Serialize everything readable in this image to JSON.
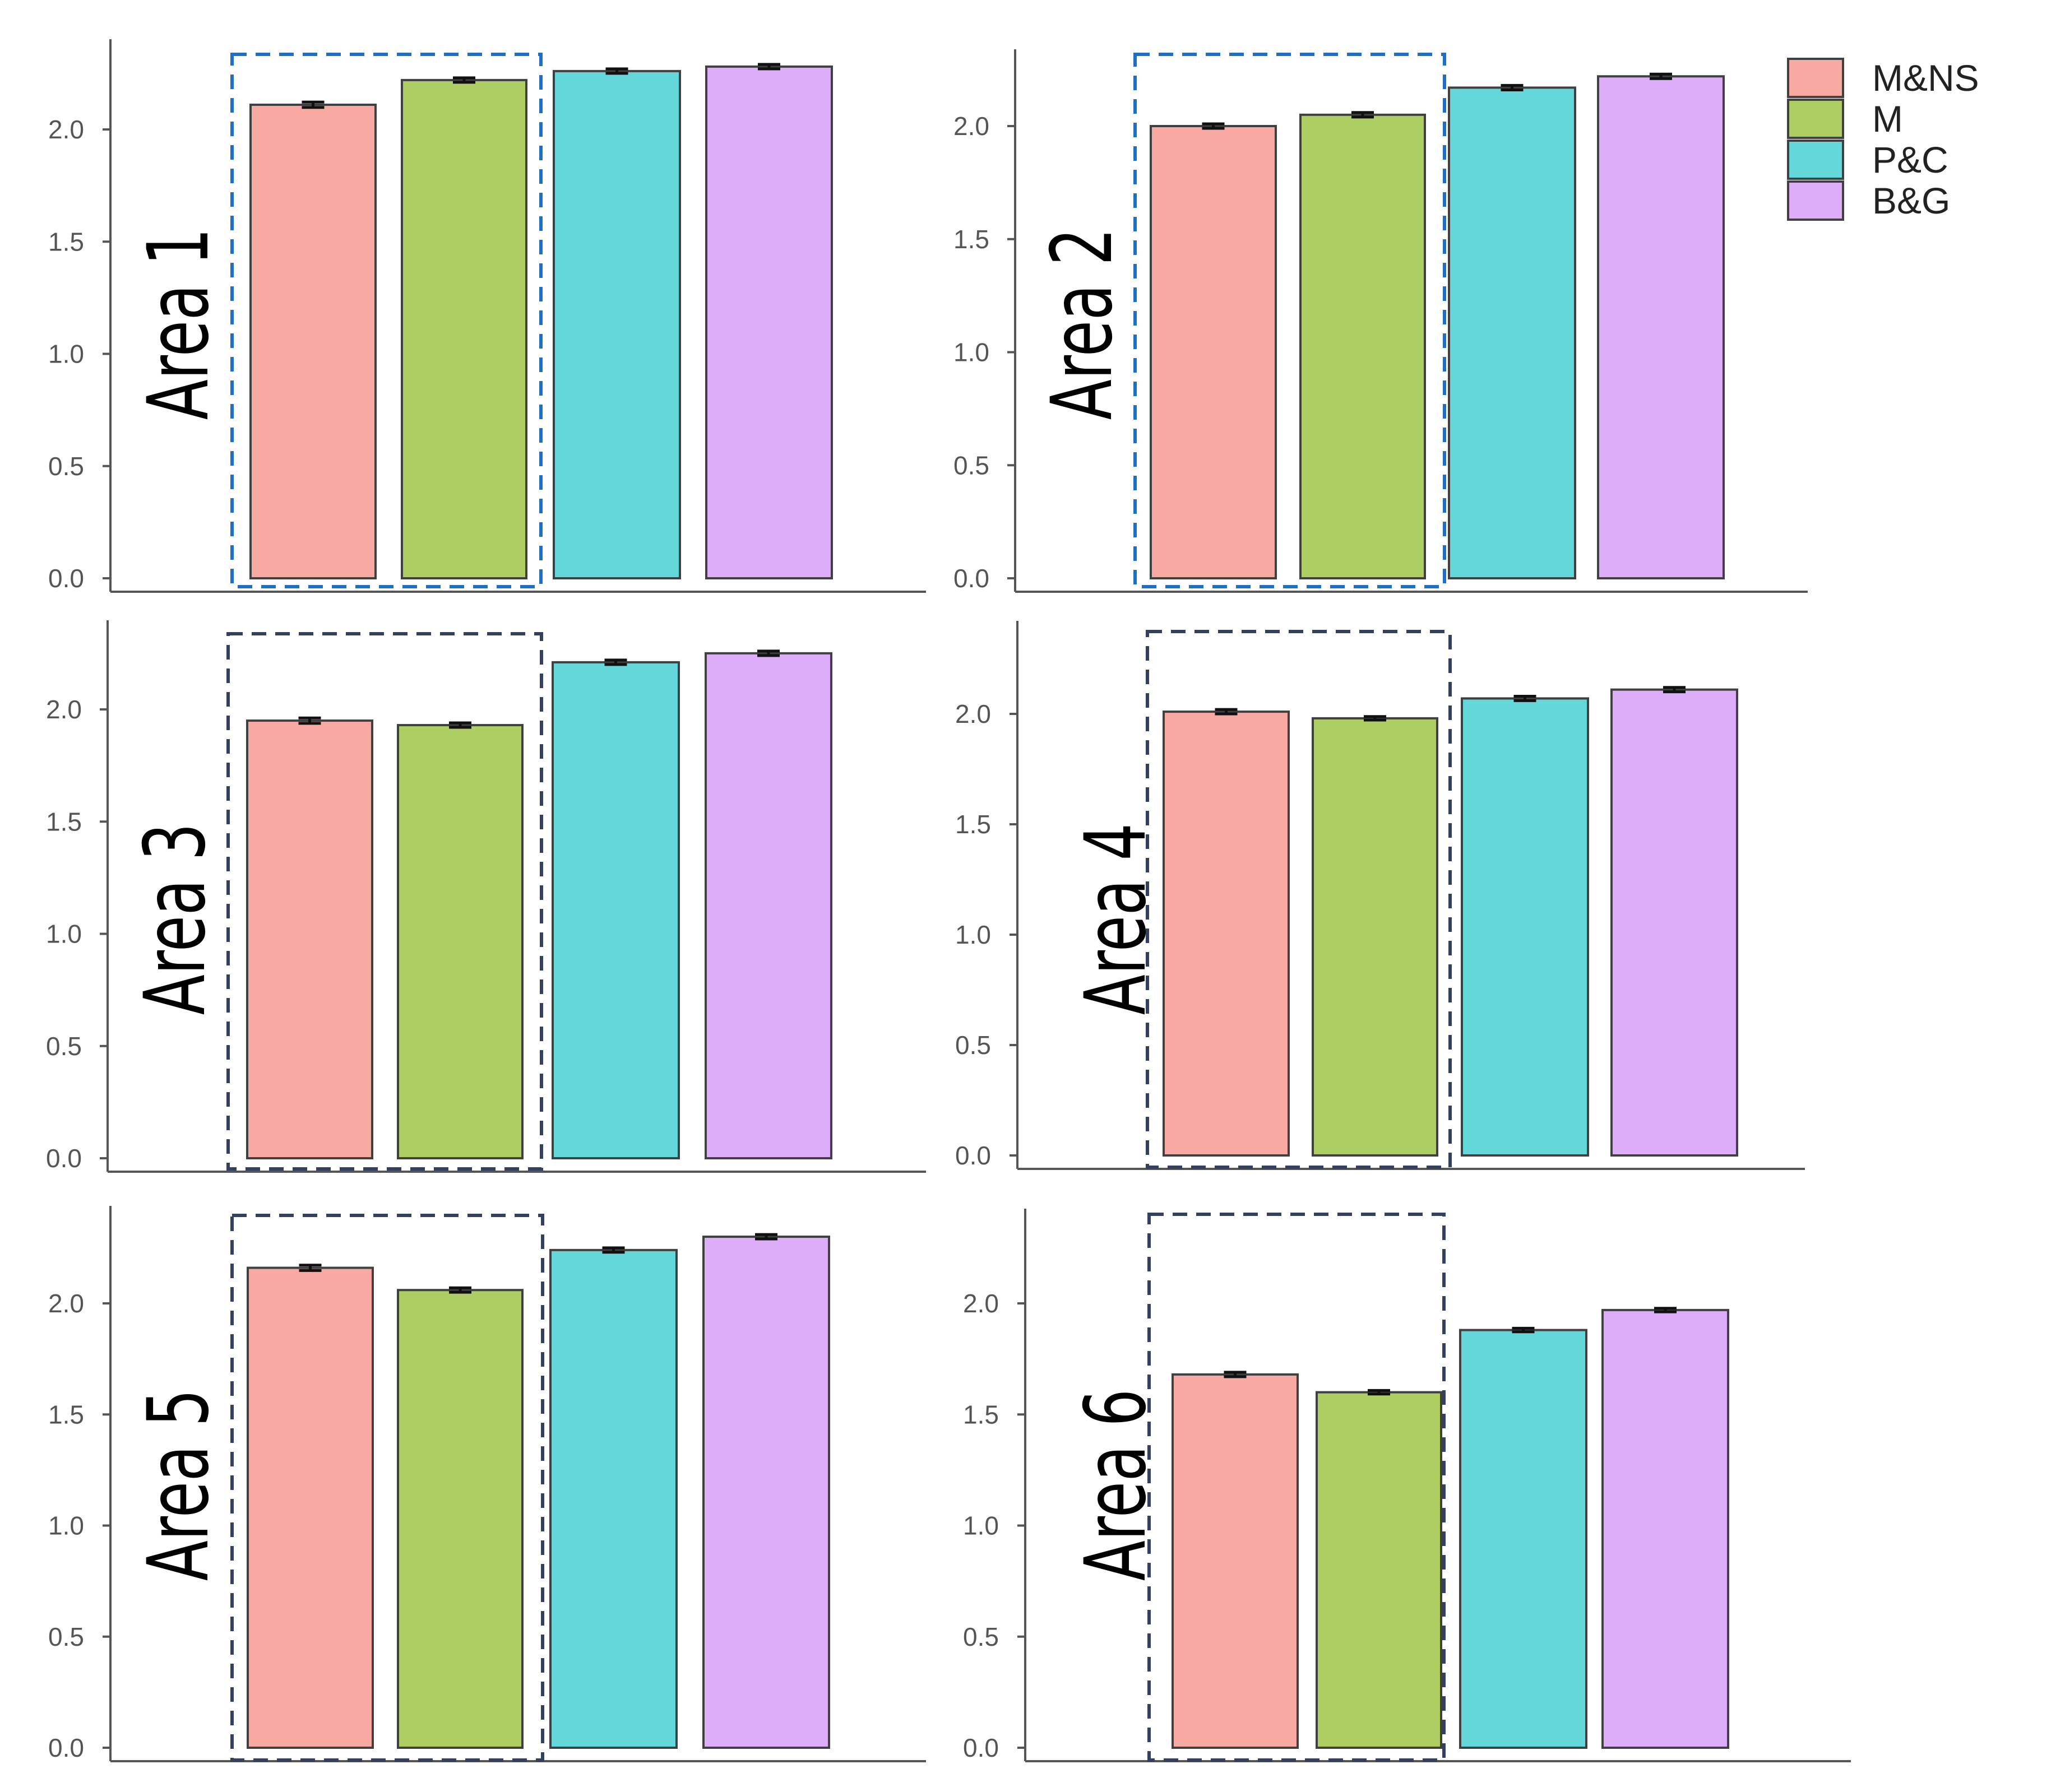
{
  "chart_data": {
    "type": "bar",
    "categories": [
      "M&NS",
      "M",
      "P&C",
      "B&G"
    ],
    "colors": {
      "M&NS": "#F8A9A2",
      "M": "#AECD63",
      "P&C": "#64D7DA",
      "B&G": "#DDADFA",
      "bar_outline": "#404040",
      "highlight_box_blue": "#1F6FC4",
      "highlight_box_dark": "#33415E",
      "axis": "#555555"
    },
    "ylim": [
      0,
      2.3
    ],
    "yticks": [
      "0.0",
      "0.5",
      "1.0",
      "1.5",
      "2.0"
    ],
    "legend": {
      "position": "top-right",
      "entries": [
        "M&NS",
        "M",
        "P&C",
        "B&G"
      ]
    },
    "panels": [
      {
        "label": "Area 1",
        "values": [
          2.11,
          2.22,
          2.26,
          2.28
        ],
        "errors": [
          0.012,
          0.01,
          0.01,
          0.01
        ],
        "highlight": "blue"
      },
      {
        "label": "Area 2",
        "values": [
          2.0,
          2.05,
          2.17,
          2.22
        ],
        "errors": [
          0.01,
          0.01,
          0.01,
          0.01
        ],
        "highlight": "blue"
      },
      {
        "label": "Area 3",
        "values": [
          1.95,
          1.93,
          2.21,
          2.25
        ],
        "errors": [
          0.012,
          0.01,
          0.01,
          0.01
        ],
        "highlight": "dark"
      },
      {
        "label": "Area 4",
        "values": [
          2.01,
          1.98,
          2.07,
          2.11
        ],
        "errors": [
          0.01,
          0.008,
          0.01,
          0.01
        ],
        "highlight": "dark"
      },
      {
        "label": "Area 5",
        "values": [
          2.16,
          2.06,
          2.24,
          2.3
        ],
        "errors": [
          0.012,
          0.01,
          0.01,
          0.01
        ],
        "highlight": "dark"
      },
      {
        "label": "Area 6",
        "values": [
          1.68,
          1.6,
          1.88,
          1.97
        ],
        "errors": [
          0.01,
          0.008,
          0.008,
          0.008
        ],
        "highlight": "dark"
      }
    ]
  }
}
